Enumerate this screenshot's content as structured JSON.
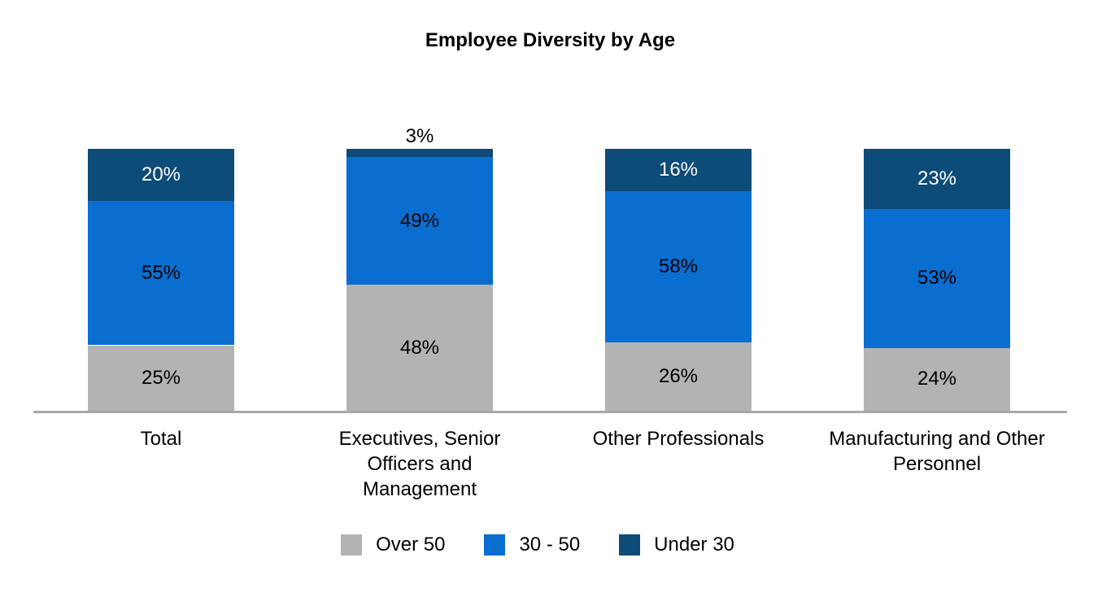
{
  "chart_data": {
    "type": "bar",
    "stacked": true,
    "orientation": "vertical",
    "title": "Employee Diversity by Age",
    "value_suffix": "%",
    "ylim": [
      0,
      100
    ],
    "grid": false,
    "axis_line_color": "#a8a8a8",
    "legend_position": "bottom",
    "small_segment_outside_threshold_pct": 6,
    "outside_label_color": "#000000",
    "categories": [
      "Total",
      "Executives, Senior Officers and Management",
      "Other Professionals",
      "Manufacturing and Other Personnel"
    ],
    "category_label_lines": [
      [
        "Total"
      ],
      [
        "Executives, Senior",
        "Officers and",
        "Management"
      ],
      [
        "Other Professionals"
      ],
      [
        "Manufacturing and Other",
        "Personnel"
      ]
    ],
    "series": [
      {
        "name": "Over 50",
        "color": "#b3b3b3",
        "label_color": "#000000",
        "values": [
          25,
          48,
          26,
          24
        ]
      },
      {
        "name": "30 - 50",
        "color": "#0a6dd0",
        "label_color": "#000000",
        "values": [
          55,
          49,
          58,
          53
        ]
      },
      {
        "name": "Under 30",
        "color": "#0d4b78",
        "label_color": "#ffffff",
        "values": [
          20,
          3,
          16,
          23
        ]
      }
    ]
  }
}
